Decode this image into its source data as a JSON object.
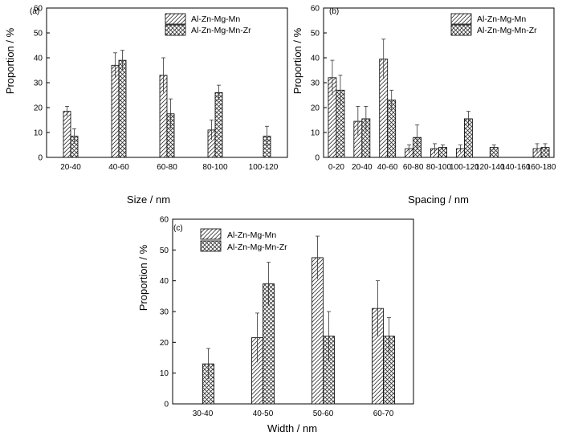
{
  "colors": {
    "axis": "#000000",
    "bar_fill": "#ffffff",
    "hatch": "#333333",
    "error_bar": "#333333"
  },
  "chart_data": [
    {
      "panel_label": "(a)",
      "type": "bar",
      "xlabel": "Size / nm",
      "ylabel": "Proportion / %",
      "ylim": [
        0,
        60
      ],
      "yticks": [
        0,
        10,
        20,
        30,
        40,
        50,
        60
      ],
      "grid": false,
      "legend_position": "top-right",
      "categories": [
        "20-40",
        "40-60",
        "60-80",
        "80-100",
        "100-120"
      ],
      "series": [
        {
          "name": "Al-Zn-Mg-Mn",
          "pattern": "diagonal",
          "values": [
            18.5,
            37,
            33,
            11,
            null
          ],
          "errors": [
            2,
            5,
            7,
            4,
            null
          ]
        },
        {
          "name": "Al-Zn-Mg-Mn-Zr",
          "pattern": "crosshatch",
          "values": [
            8.5,
            39,
            17.5,
            26,
            8.5
          ],
          "errors": [
            3,
            4,
            6,
            3,
            4
          ]
        }
      ]
    },
    {
      "panel_label": "(b)",
      "type": "bar",
      "xlabel": "Spacing / nm",
      "ylabel": "Proportion / %",
      "ylim": [
        0,
        60
      ],
      "yticks": [
        0,
        10,
        20,
        30,
        40,
        50,
        60
      ],
      "grid": false,
      "legend_position": "top-right",
      "categories": [
        "0-20",
        "20-40",
        "40-60",
        "60-80",
        "80-100",
        "100-120",
        "120-140",
        "140-160",
        "160-180"
      ],
      "series": [
        {
          "name": "Al-Zn-Mg-Mn",
          "pattern": "diagonal",
          "values": [
            32,
            14.5,
            39.5,
            3.5,
            3.5,
            3.5,
            null,
            null,
            3.5
          ],
          "errors": [
            7,
            6,
            8,
            1.5,
            2,
            1.5,
            null,
            null,
            2
          ]
        },
        {
          "name": "Al-Zn-Mg-Mn-Zr",
          "pattern": "crosshatch",
          "values": [
            27,
            15.5,
            23,
            8,
            4,
            15.5,
            4,
            null,
            4
          ],
          "errors": [
            6,
            5,
            4,
            5,
            1,
            3,
            1,
            null,
            1.5
          ]
        }
      ]
    },
    {
      "panel_label": "(c)",
      "type": "bar",
      "xlabel": "Width / nm",
      "ylabel": "Proportion / %",
      "ylim": [
        0,
        60
      ],
      "yticks": [
        0,
        10,
        20,
        30,
        40,
        50,
        60
      ],
      "grid": false,
      "legend_position": "top-left",
      "categories": [
        "30-40",
        "40-50",
        "50-60",
        "60-70"
      ],
      "series": [
        {
          "name": "Al-Zn-Mg-Mn",
          "pattern": "diagonal",
          "values": [
            null,
            21.5,
            47.5,
            31
          ],
          "errors": [
            null,
            8,
            7,
            9
          ]
        },
        {
          "name": "Al-Zn-Mg-Mn-Zr",
          "pattern": "crosshatch",
          "values": [
            13,
            39,
            22,
            22
          ],
          "errors": [
            5,
            7,
            8,
            6
          ]
        }
      ]
    }
  ]
}
